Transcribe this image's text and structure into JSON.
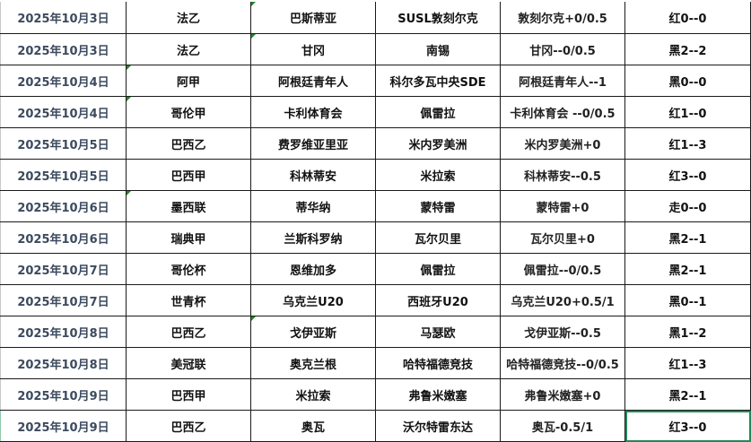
{
  "colors": {
    "date_text": "#3c4a5e",
    "selection": "#1f8a5a",
    "indicator": "#1e8a1e"
  },
  "selected_cell": {
    "row": 13,
    "column": "result"
  },
  "rows": [
    {
      "date": "2025年10月3日",
      "league": "法乙",
      "home": "巴斯蒂亚",
      "away": "SUSL敦刻尔克",
      "handicap": "敦刻尔克+0/0.5",
      "result": "红0--0",
      "mark": "home"
    },
    {
      "date": "2025年10月3日",
      "league": "法乙",
      "home": "甘冈",
      "away": "南锡",
      "handicap": "甘冈--0/0.5",
      "result": "黑2--2",
      "mark": "home"
    },
    {
      "date": "2025年10月4日",
      "league": "阿甲",
      "home": "阿根廷青年人",
      "away": "科尔多瓦中央SDE",
      "handicap": "阿根廷青年人--1",
      "result": "黑0--0",
      "mark": "league"
    },
    {
      "date": "2025年10月4日",
      "league": "哥伦甲",
      "home": "卡利体育会",
      "away": "佩雷拉",
      "handicap": "卡利体育会 --0/0.5",
      "result": "红1--0",
      "mark": "league"
    },
    {
      "date": "2025年10月5日",
      "league": "巴西乙",
      "home": "费罗维亚里亚",
      "away": "米内罗美洲",
      "handicap": "米内罗美洲+0",
      "result": "红1--3",
      "mark": ""
    },
    {
      "date": "2025年10月5日",
      "league": "巴西甲",
      "home": "科林蒂安",
      "away": "米拉索",
      "handicap": "科林蒂安--0.5",
      "result": "红3--0",
      "mark": ""
    },
    {
      "date": "2025年10月6日",
      "league": "墨西联",
      "home": "蒂华纳",
      "away": "蒙特雷",
      "handicap": "蒙特雷+0",
      "result": "走0--0",
      "mark": "league"
    },
    {
      "date": "2025年10月6日",
      "league": "瑞典甲",
      "home": "兰斯科罗纳",
      "away": "瓦尔贝里",
      "handicap": "瓦尔贝里+0",
      "result": "黑2--1",
      "mark": ""
    },
    {
      "date": "2025年10月7日",
      "league": "哥伦杯",
      "home": "恩维加多",
      "away": "佩雷拉",
      "handicap": "佩雷拉--0/0.5",
      "result": "黑2--1",
      "mark": ""
    },
    {
      "date": "2025年10月7日",
      "league": "世青杯",
      "home": "乌克兰U20",
      "away": "西班牙U20",
      "handicap": "乌克兰U20+0.5/1",
      "result": "黑0--1",
      "mark": ""
    },
    {
      "date": "2025年10月8日",
      "league": "巴西乙",
      "home": "戈伊亚斯",
      "away": "马瑟欧",
      "handicap": "戈伊亚斯--0.5",
      "result": "黑1--2",
      "mark": "home"
    },
    {
      "date": "2025年10月8日",
      "league": "美冠联",
      "home": "奥克兰根",
      "away": "哈特福德竞技",
      "handicap": "哈特福德竞技--0/0.5",
      "result": "红1--3",
      "mark": ""
    },
    {
      "date": "2025年10月9日",
      "league": "巴西甲",
      "home": "米拉索",
      "away": "弗鲁米嫩塞",
      "handicap": "弗鲁米嫩塞+0",
      "result": "黑2--1",
      "mark": ""
    },
    {
      "date": "2025年10月9日",
      "league": "巴西乙",
      "home": "奥瓦",
      "away": "沃尔特雷东达",
      "handicap": "奥瓦-0.5/1",
      "result": "红3--0",
      "mark": ""
    }
  ]
}
